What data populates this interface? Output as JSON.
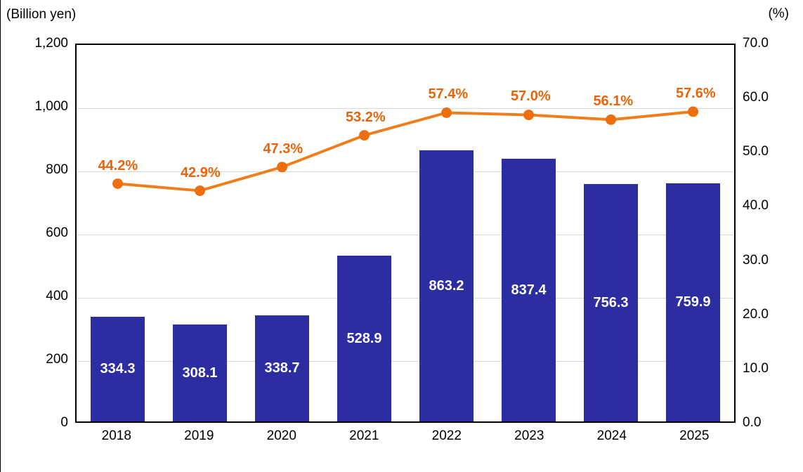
{
  "chart_data": {
    "type": "bar+line",
    "categories": [
      "2018",
      "2019",
      "2020",
      "2021",
      "2022",
      "2023",
      "2024",
      "2025"
    ],
    "bar_series": {
      "axis": "left",
      "values": [
        334.3,
        308.1,
        338.7,
        528.9,
        863.2,
        837.4,
        756.3,
        759.9
      ],
      "data_labels": [
        "334.3",
        "308.1",
        "338.7",
        "528.9",
        "863.2",
        "837.4",
        "756.3",
        "759.9"
      ],
      "color": "#2B2DA0",
      "label_color": "#FFFFFF"
    },
    "line_series": {
      "axis": "right",
      "values": [
        44.2,
        42.9,
        47.3,
        53.2,
        57.4,
        57.0,
        56.1,
        57.6
      ],
      "data_labels": [
        "44.2%",
        "42.9%",
        "47.3%",
        "53.2%",
        "57.4%",
        "57.0%",
        "56.1%",
        "57.6%"
      ],
      "color": "#F07D1C",
      "marker_color": "#EC6E0C",
      "label_color": "#E8640A"
    },
    "left_axis": {
      "title": "(Billion yen)",
      "min": 0,
      "max": 1200,
      "step": 200,
      "tick_values": [
        0,
        200,
        400,
        600,
        800,
        1000,
        1200
      ],
      "tick_labels": [
        "0",
        "200",
        "400",
        "600",
        "800",
        "1,000",
        "1,200"
      ]
    },
    "right_axis": {
      "title": "(%)",
      "min": 0,
      "max": 70,
      "step": 10,
      "tick_values": [
        0,
        10,
        20,
        30,
        40,
        50,
        60,
        70
      ],
      "tick_labels": [
        "0.0",
        "10.0",
        "20.0",
        "30.0",
        "40.0",
        "50.0",
        "60.0",
        "70.0"
      ]
    },
    "grid": {
      "on": true,
      "color": "#D9D9D9",
      "follows": "left-axis"
    },
    "legend": {
      "visible": false
    },
    "title": ""
  }
}
